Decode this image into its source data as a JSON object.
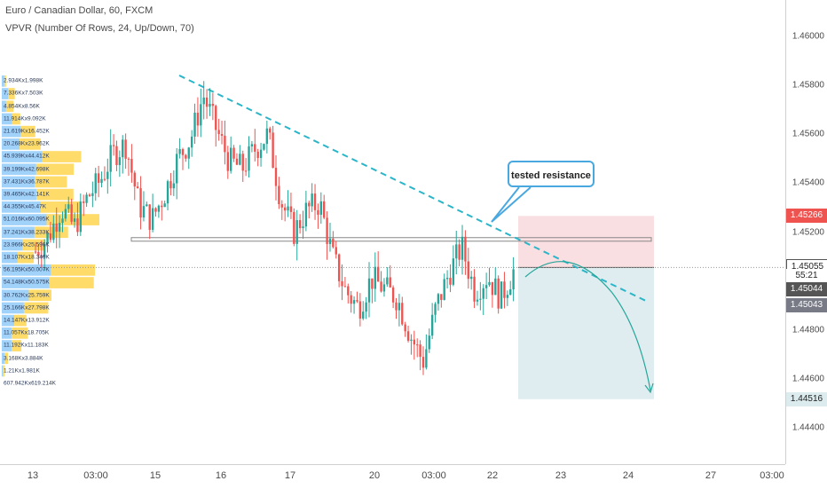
{
  "header": {
    "symbol_line": "Euro / Canadian Dollar, 60, FXCM",
    "indicator_line": "VPVR (Number Of Rows, 24, Up/Down, 70)"
  },
  "annotation": {
    "label": "tested resistance"
  },
  "colors": {
    "up_candle": "#26a69a",
    "down_candle": "#ef5350",
    "trendline": "#2bb5c8",
    "volume_up": "#90caf9",
    "volume_down": "#ffd54f",
    "stop_zone": "#f8d7da",
    "target_zone": "#dcebee",
    "badge_red": "#ef5350",
    "badge_dark": "#555555",
    "badge_gray": "#787b86"
  },
  "y_axis": {
    "ticks": [
      "1.46000",
      "1.45800",
      "1.45600",
      "1.45400",
      "1.45200",
      "1.44800",
      "1.44600",
      "1.44400"
    ],
    "price_badges": [
      {
        "text": "1.45266",
        "kind": "stop"
      },
      {
        "text": "1.45055",
        "kind": "entry"
      },
      {
        "text": "55:21",
        "kind": "countdown"
      },
      {
        "text": "1.45044",
        "kind": "last"
      },
      {
        "text": "1.45043",
        "kind": "gray"
      },
      {
        "text": "1.44516",
        "kind": "target"
      }
    ]
  },
  "x_axis": {
    "ticks": [
      "13",
      "03:00",
      "15",
      "16",
      "17",
      "20",
      "03:00",
      "22",
      "23",
      "24",
      "27",
      "03:00"
    ]
  },
  "volume_profile": [
    "2.934Kx1.998K",
    "7.336Kx7.503K",
    "4.854Kx8.56K",
    "11.914Kx9.092K",
    "21.619Kx16.452K",
    "20.268Kx23.962K",
    "45.939Kx44.412K",
    "39.199Kx42.698K",
    "37.431Kx36.787K",
    "39.465Kx42.141K",
    "44.355Kx45.47K",
    "51.016Kx60.095K",
    "37.241Kx38.233K",
    "23.966Kx25.596K",
    "18.107Kx18.346K",
    "56.195Kx50.007K",
    "54.148Kx50.575K",
    "30.762Kx25.759K",
    "25.166Kx27.798K",
    "14.147Kx13.912K",
    "11.057Kx18.705K",
    "11.192Kx11.183K",
    "3.168Kx3.884K",
    "1.21Kx1.981K",
    "607.942Kx619.214K"
  ],
  "chart_data": {
    "type": "candlestick",
    "y_range": [
      1.4425,
      1.4615
    ],
    "candles_close_path": [
      1.4512,
      1.4518,
      1.453,
      1.4522,
      1.4534,
      1.4541,
      1.4552,
      1.4556,
      1.4531,
      1.4525,
      1.4536,
      1.455,
      1.4558,
      1.4576,
      1.4562,
      1.4549,
      1.4546,
      1.4554,
      1.456,
      1.4533,
      1.452,
      1.4529,
      1.4532,
      1.451,
      1.4496,
      1.4489,
      1.4501,
      1.4497,
      1.4493,
      1.4478,
      1.4467,
      1.4489,
      1.4503,
      1.4514,
      1.4496,
      1.4502,
      1.4493,
      1.4504
    ],
    "horizontal_level": 1.4517,
    "stop_level": 1.45266,
    "entry_level": 1.45055,
    "target_level": 1.44516,
    "last_price": 1.45044
  }
}
